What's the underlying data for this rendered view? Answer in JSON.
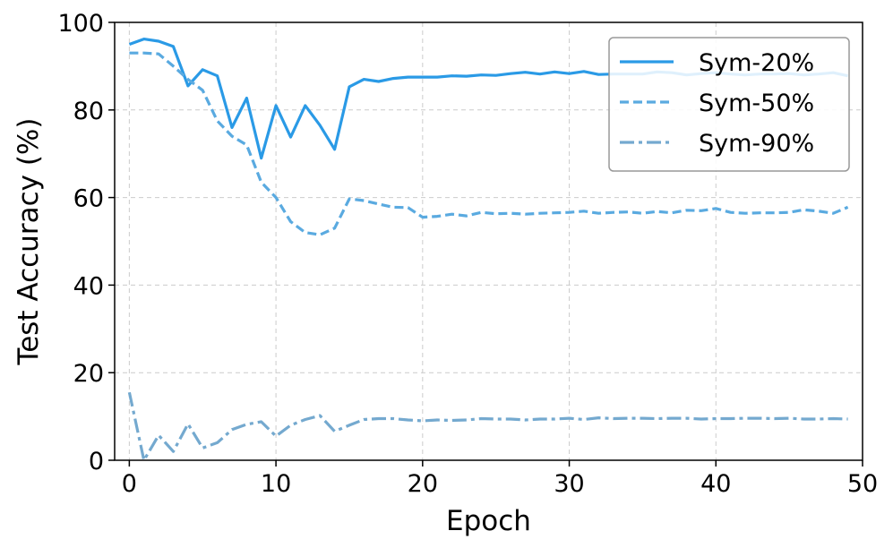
{
  "chart_data": {
    "type": "line",
    "title": "",
    "xlabel": "Epoch",
    "ylabel": "Test Accuracy (%)",
    "xlim": [
      -1,
      50
    ],
    "ylim": [
      0,
      100
    ],
    "xticks": [
      0,
      10,
      20,
      30,
      40,
      50
    ],
    "yticks": [
      0,
      20,
      40,
      60,
      80,
      100
    ],
    "grid": true,
    "legend_position": "top-right",
    "x": [
      0,
      1,
      2,
      3,
      4,
      5,
      6,
      7,
      8,
      9,
      10,
      11,
      12,
      13,
      14,
      15,
      16,
      17,
      18,
      19,
      20,
      21,
      22,
      23,
      24,
      25,
      26,
      27,
      28,
      29,
      30,
      31,
      32,
      33,
      34,
      35,
      36,
      37,
      38,
      39,
      40,
      41,
      42,
      43,
      44,
      45,
      46,
      47,
      48,
      49
    ],
    "series": [
      {
        "name": "Sym-20%",
        "color": "#2a9ae6",
        "dash": "solid",
        "values": [
          95.0,
          96.2,
          95.7,
          94.5,
          85.5,
          89.2,
          87.8,
          76.0,
          82.7,
          69.0,
          81.0,
          73.8,
          81.0,
          76.5,
          71.0,
          85.3,
          87.0,
          86.5,
          87.2,
          87.5,
          87.5,
          87.5,
          87.8,
          87.7,
          88.0,
          87.9,
          88.3,
          88.6,
          88.2,
          88.7,
          88.3,
          88.8,
          88.1,
          88.2,
          88.2,
          88.2,
          88.7,
          88.5,
          88.0,
          88.3,
          88.5,
          88.2,
          88.0,
          88.2,
          88.2,
          88.3,
          88.0,
          88.2,
          88.5,
          87.8
        ]
      },
      {
        "name": "Sym-50%",
        "color": "#5aaae0",
        "dash": "dashed",
        "values": [
          93.0,
          93.0,
          92.8,
          90.0,
          87.0,
          84.5,
          77.5,
          74.0,
          72.0,
          63.5,
          60.0,
          54.5,
          52.0,
          51.5,
          53.0,
          59.7,
          59.3,
          58.5,
          57.8,
          57.7,
          55.5,
          55.7,
          56.2,
          55.8,
          56.6,
          56.3,
          56.4,
          56.2,
          56.4,
          56.5,
          56.6,
          56.9,
          56.4,
          56.6,
          56.7,
          56.4,
          56.8,
          56.5,
          57.1,
          57.0,
          57.5,
          56.6,
          56.4,
          56.5,
          56.5,
          56.6,
          57.2,
          56.9,
          56.4,
          57.8
        ]
      },
      {
        "name": "Sym-90%",
        "color": "#74a9cf",
        "dash": "dashdot",
        "values": [
          15.5,
          0.0,
          5.7,
          2.0,
          8.3,
          2.8,
          4.0,
          7.0,
          8.2,
          8.8,
          5.5,
          8.0,
          9.3,
          10.2,
          6.6,
          8.0,
          9.3,
          9.5,
          9.5,
          9.2,
          9.0,
          9.2,
          9.1,
          9.2,
          9.5,
          9.4,
          9.4,
          9.2,
          9.4,
          9.4,
          9.6,
          9.3,
          9.7,
          9.5,
          9.6,
          9.6,
          9.5,
          9.6,
          9.6,
          9.4,
          9.5,
          9.5,
          9.6,
          9.6,
          9.5,
          9.6,
          9.4,
          9.4,
          9.5,
          9.4
        ]
      }
    ]
  }
}
